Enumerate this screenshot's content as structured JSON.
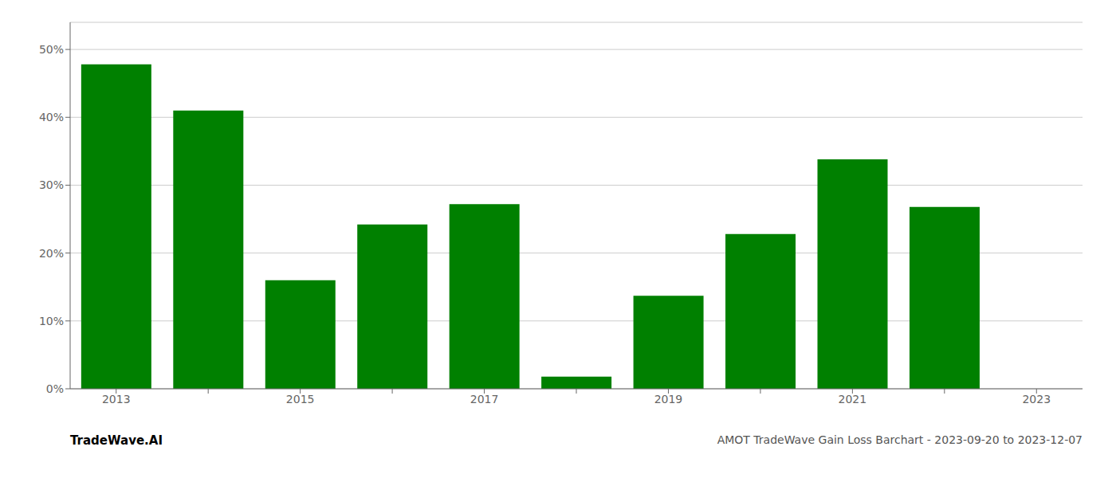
{
  "chart_data": {
    "type": "bar",
    "categories": [
      "2013",
      null,
      "2015",
      null,
      "2017",
      null,
      "2019",
      null,
      "2021",
      null,
      "2023"
    ],
    "values": [
      0.478,
      0.41,
      0.16,
      0.242,
      0.272,
      0.018,
      0.137,
      0.228,
      0.338,
      0.268,
      0.0
    ],
    "color": "#008000",
    "ylim": [
      0,
      0.54
    ],
    "yticks": [
      {
        "value": 0.0,
        "label": "0%"
      },
      {
        "value": 0.1,
        "label": "10%"
      },
      {
        "value": 0.2,
        "label": "20%"
      },
      {
        "value": 0.3,
        "label": "30%"
      },
      {
        "value": 0.4,
        "label": "40%"
      },
      {
        "value": 0.5,
        "label": "50%"
      }
    ],
    "grid": true,
    "annotations": [
      "TradeWave.AI",
      "AMOT TradeWave Gain Loss Barchart - 2023-09-20 to 2023-12-07"
    ]
  }
}
